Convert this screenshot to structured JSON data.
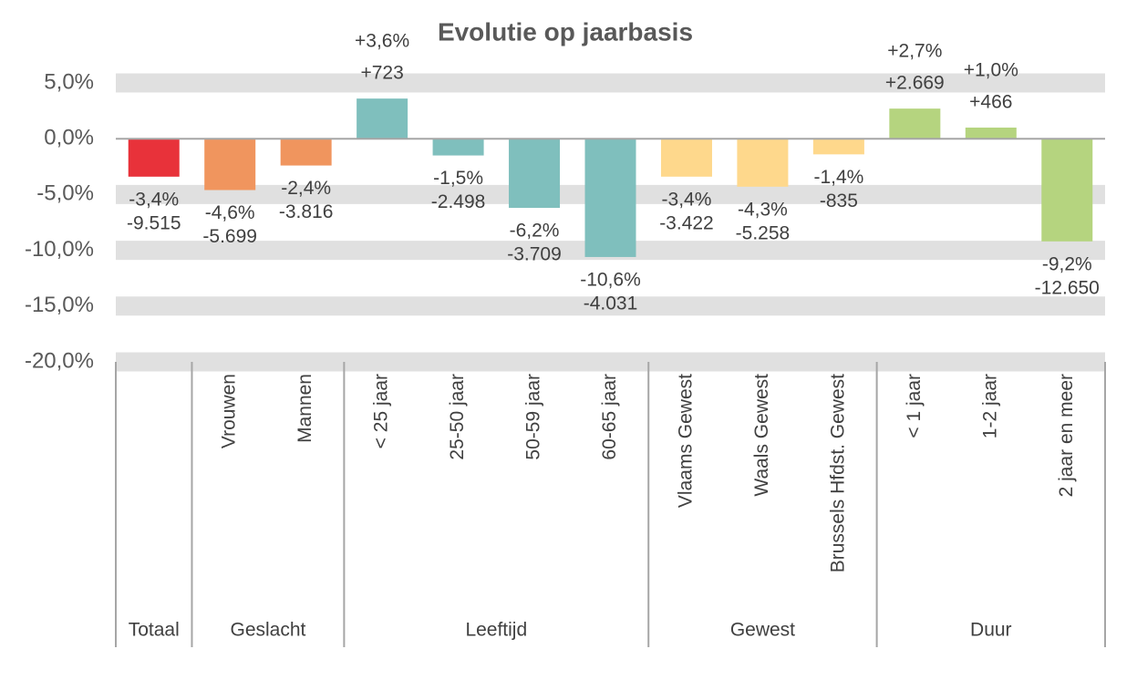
{
  "chart_data": {
    "type": "bar",
    "title": "Evolutie op jaarbasis",
    "categories": [
      null,
      "Vrouwen",
      "Mannen",
      "< 25 jaar",
      "25-50 jaar",
      "50-59 jaar",
      "60-65 jaar",
      "Vlaams Gewest",
      "Waals Gewest",
      "Brussels Hfdst. Gewest",
      "< 1 jaar",
      "1-2 jaar",
      "2 jaar en meer"
    ],
    "category_groups": [
      "Totaal",
      "Geslacht",
      "Geslacht",
      "Leeftijd",
      "Leeftijd",
      "Leeftijd",
      "Leeftijd",
      "Gewest",
      "Gewest",
      "Gewest",
      "Duur",
      "Duur",
      "Duur"
    ],
    "values": [
      -3.4,
      -4.6,
      -2.4,
      3.6,
      -1.5,
      -6.2,
      -10.6,
      -3.4,
      -4.3,
      -1.4,
      2.7,
      1.0,
      -9.2
    ],
    "value_labels": [
      "-3,4%",
      "-4,6%",
      "-2,4%",
      "+3,6%",
      "-1,5%",
      "-6,2%",
      "-10,6%",
      "-3,4%",
      "-4,3%",
      "-1,4%",
      "+2,7%",
      "+1,0%",
      "-9,2%"
    ],
    "counts": [
      -9515,
      -5699,
      -3816,
      723,
      -2498,
      -3709,
      -4031,
      -3422,
      -5258,
      -835,
      2669,
      466,
      -12650
    ],
    "count_labels": [
      "-9.515",
      "-5.699",
      "-3.816",
      "+723",
      "-2.498",
      "-3.709",
      "-4.031",
      "-3.422",
      "-5.258",
      "-835",
      "+2.669",
      "+466",
      "-12.650"
    ],
    "colors": [
      "#e8323a",
      "#f0955e",
      "#f0955e",
      "#7fbfbd",
      "#7fbfbd",
      "#7fbfbd",
      "#7fbfbd",
      "#fed88c",
      "#fed88c",
      "#fed88c",
      "#b5d47f",
      "#b5d47f",
      "#b5d47f"
    ],
    "ylim": [
      -20,
      5
    ],
    "yticks": [
      {
        "value": 5,
        "label": "5,0%"
      },
      {
        "value": 0,
        "label": "0,0%"
      },
      {
        "value": -5,
        "label": "-5,0%"
      },
      {
        "value": -10,
        "label": "-10,0%"
      },
      {
        "value": -15,
        "label": "-15,0%"
      },
      {
        "value": -20,
        "label": "-20,0%"
      }
    ],
    "grid": true
  }
}
